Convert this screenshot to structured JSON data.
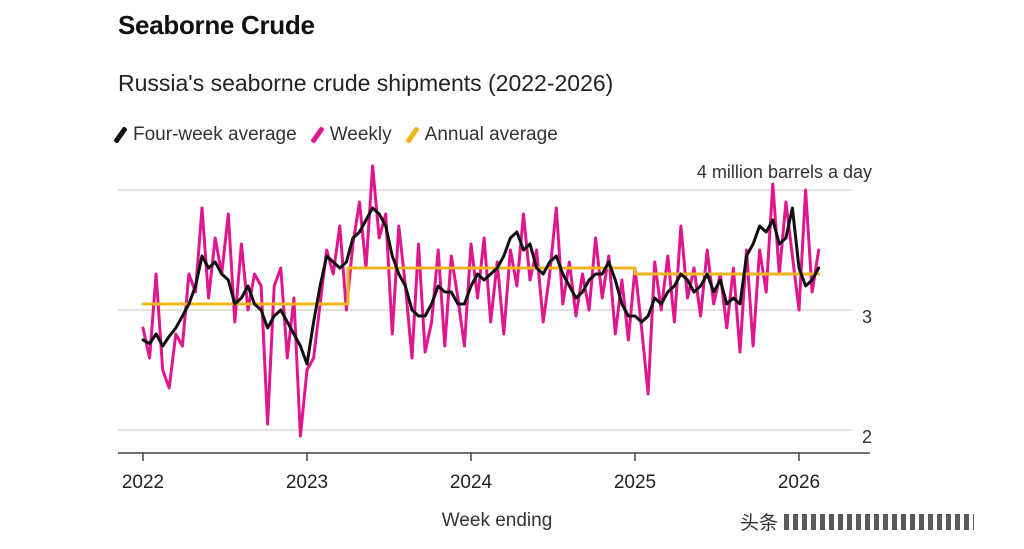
{
  "headline": "Seaborne Crude",
  "chart_data": {
    "type": "line",
    "title": "Russia's seaborne crude shipments (2022-2026)",
    "xlabel": "Week ending",
    "ylabel": "4 million barrels a day",
    "ylim": [
      1.9,
      4.1
    ],
    "xlim": [
      2021.95,
      2026.35
    ],
    "xticks": [
      {
        "value": 2022,
        "label": "2022"
      },
      {
        "value": 2023,
        "label": "2023"
      },
      {
        "value": 2024,
        "label": "2024"
      },
      {
        "value": 2025,
        "label": "2025"
      },
      {
        "value": 2026,
        "label": "2026"
      }
    ],
    "yticks": [
      {
        "value": 4,
        "label": "4 million barrels a day"
      },
      {
        "value": 3,
        "label": "3"
      },
      {
        "value": 2,
        "label": "2"
      }
    ],
    "legend": "top-left",
    "series": [
      {
        "name": "Weekly",
        "color": "#e0168f",
        "x": [
          2022.0,
          2022.04,
          2022.08,
          2022.12,
          2022.16,
          2022.2,
          2022.24,
          2022.28,
          2022.32,
          2022.36,
          2022.4,
          2022.44,
          2022.48,
          2022.52,
          2022.56,
          2022.6,
          2022.64,
          2022.68,
          2022.72,
          2022.76,
          2022.8,
          2022.84,
          2022.88,
          2022.92,
          2022.96,
          2023.0,
          2023.04,
          2023.08,
          2023.12,
          2023.16,
          2023.2,
          2023.24,
          2023.28,
          2023.32,
          2023.36,
          2023.4,
          2023.44,
          2023.48,
          2023.52,
          2023.56,
          2023.6,
          2023.64,
          2023.68,
          2023.72,
          2023.76,
          2023.8,
          2023.84,
          2023.88,
          2023.92,
          2023.96,
          2024.0,
          2024.04,
          2024.08,
          2024.12,
          2024.16,
          2024.2,
          2024.24,
          2024.28,
          2024.32,
          2024.36,
          2024.4,
          2024.44,
          2024.48,
          2024.52,
          2024.56,
          2024.6,
          2024.64,
          2024.68,
          2024.72,
          2024.76,
          2024.8,
          2024.84,
          2024.88,
          2024.92,
          2024.96,
          2025.0,
          2025.04,
          2025.08,
          2025.12,
          2025.16,
          2025.2,
          2025.24,
          2025.28,
          2025.32,
          2025.36,
          2025.4,
          2025.44,
          2025.48,
          2025.52,
          2025.56,
          2025.6,
          2025.64,
          2025.68,
          2025.72,
          2025.76,
          2025.8,
          2025.84,
          2025.88,
          2025.92,
          2025.96,
          2026.0,
          2026.04,
          2026.08,
          2026.12
        ],
        "values": [
          2.85,
          2.6,
          3.3,
          2.5,
          2.35,
          2.8,
          2.7,
          3.3,
          3.15,
          3.85,
          3.1,
          3.6,
          3.3,
          3.8,
          2.9,
          3.55,
          3.0,
          3.3,
          3.2,
          2.05,
          3.2,
          3.35,
          2.6,
          3.1,
          1.95,
          2.5,
          2.6,
          3.05,
          3.5,
          3.3,
          3.7,
          3.0,
          3.55,
          3.9,
          3.35,
          4.2,
          3.6,
          3.8,
          2.8,
          3.7,
          3.2,
          2.6,
          3.55,
          2.65,
          2.9,
          3.5,
          2.7,
          3.45,
          3.1,
          2.7,
          3.55,
          3.1,
          3.6,
          2.9,
          3.4,
          2.8,
          3.5,
          3.2,
          3.8,
          3.25,
          3.5,
          2.9,
          3.3,
          3.85,
          3.05,
          3.4,
          2.95,
          3.3,
          3.0,
          3.6,
          3.1,
          3.45,
          2.8,
          3.25,
          2.75,
          3.35,
          2.85,
          2.3,
          3.4,
          3.0,
          3.45,
          2.9,
          3.7,
          3.1,
          3.35,
          2.95,
          3.5,
          3.05,
          3.3,
          2.85,
          3.35,
          2.65,
          3.5,
          2.7,
          3.5,
          3.15,
          4.05,
          3.3,
          3.9,
          3.45,
          3.0,
          4.0,
          3.15,
          3.5
        ]
      },
      {
        "name": "Four-week average",
        "color": "#111111",
        "x": [
          2022.0,
          2022.04,
          2022.08,
          2022.12,
          2022.16,
          2022.2,
          2022.24,
          2022.28,
          2022.32,
          2022.36,
          2022.4,
          2022.44,
          2022.48,
          2022.52,
          2022.56,
          2022.6,
          2022.64,
          2022.68,
          2022.72,
          2022.76,
          2022.8,
          2022.84,
          2022.88,
          2022.92,
          2022.96,
          2023.0,
          2023.04,
          2023.08,
          2023.12,
          2023.16,
          2023.2,
          2023.24,
          2023.28,
          2023.32,
          2023.36,
          2023.4,
          2023.44,
          2023.48,
          2023.52,
          2023.56,
          2023.6,
          2023.64,
          2023.68,
          2023.72,
          2023.76,
          2023.8,
          2023.84,
          2023.88,
          2023.92,
          2023.96,
          2024.0,
          2024.04,
          2024.08,
          2024.12,
          2024.16,
          2024.2,
          2024.24,
          2024.28,
          2024.32,
          2024.36,
          2024.4,
          2024.44,
          2024.48,
          2024.52,
          2024.56,
          2024.6,
          2024.64,
          2024.68,
          2024.72,
          2024.76,
          2024.8,
          2024.84,
          2024.88,
          2024.92,
          2024.96,
          2025.0,
          2025.04,
          2025.08,
          2025.12,
          2025.16,
          2025.2,
          2025.24,
          2025.28,
          2025.32,
          2025.36,
          2025.4,
          2025.44,
          2025.48,
          2025.52,
          2025.56,
          2025.6,
          2025.64,
          2025.68,
          2025.72,
          2025.76,
          2025.8,
          2025.84,
          2025.88,
          2025.92,
          2025.96,
          2026.0,
          2026.04,
          2026.08,
          2026.12
        ],
        "values": [
          2.75,
          2.72,
          2.8,
          2.7,
          2.78,
          2.85,
          2.95,
          3.05,
          3.2,
          3.45,
          3.35,
          3.4,
          3.3,
          3.25,
          3.05,
          3.1,
          3.2,
          3.05,
          3.0,
          2.85,
          2.95,
          3.0,
          2.9,
          2.8,
          2.7,
          2.55,
          2.9,
          3.2,
          3.45,
          3.4,
          3.35,
          3.4,
          3.6,
          3.65,
          3.75,
          3.85,
          3.8,
          3.7,
          3.45,
          3.3,
          3.2,
          3.0,
          2.95,
          2.95,
          3.05,
          3.2,
          3.15,
          3.15,
          3.05,
          3.05,
          3.2,
          3.3,
          3.25,
          3.3,
          3.35,
          3.45,
          3.6,
          3.65,
          3.5,
          3.55,
          3.35,
          3.3,
          3.4,
          3.45,
          3.3,
          3.2,
          3.1,
          3.15,
          3.25,
          3.3,
          3.3,
          3.4,
          3.25,
          3.05,
          2.95,
          2.95,
          2.9,
          2.95,
          3.1,
          3.05,
          3.15,
          3.2,
          3.3,
          3.25,
          3.15,
          3.2,
          3.3,
          3.15,
          3.25,
          3.05,
          3.1,
          3.05,
          3.45,
          3.55,
          3.7,
          3.65,
          3.75,
          3.55,
          3.6,
          3.85,
          3.35,
          3.2,
          3.25,
          3.35
        ]
      },
      {
        "name": "Annual average",
        "color": "#f2b51c",
        "step": true,
        "x": [
          2022.0,
          2023.25,
          2023.25,
          2025.0,
          2025.0,
          2026.12
        ],
        "values": [
          3.05,
          3.05,
          3.35,
          3.35,
          3.3,
          3.3
        ]
      }
    ]
  },
  "watermark": "头条"
}
